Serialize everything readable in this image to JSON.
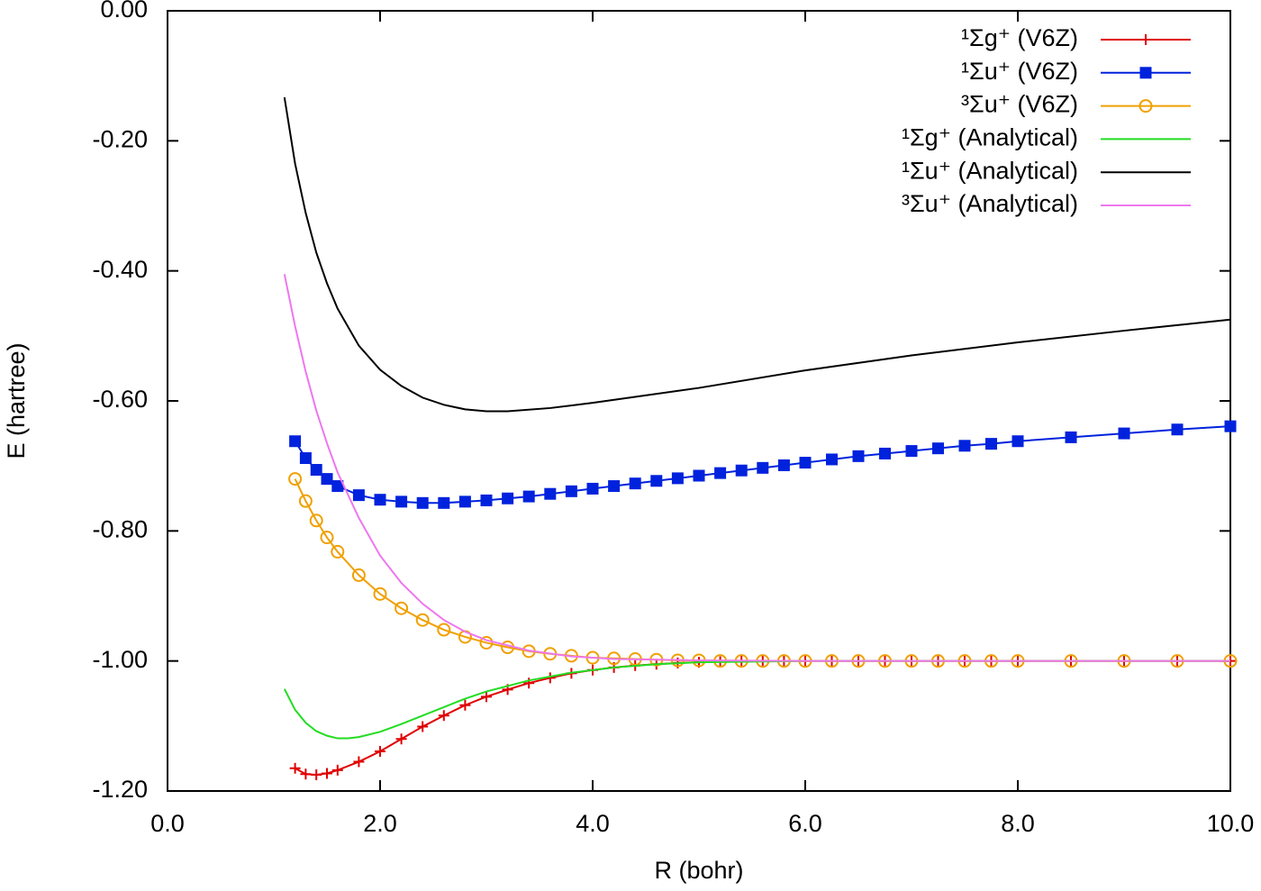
{
  "chart_data": {
    "type": "line",
    "x_label": "R (bohr)",
    "y_label": "E (hartree)",
    "xlim": [
      0,
      10
    ],
    "ylim": [
      -1.2,
      0
    ],
    "xticks": [
      {
        "value": 0,
        "label": "0.0"
      },
      {
        "value": 2,
        "label": "2.0"
      },
      {
        "value": 4,
        "label": "4.0"
      },
      {
        "value": 6,
        "label": "6.0"
      },
      {
        "value": 8,
        "label": "8.0"
      },
      {
        "value": 10,
        "label": "10.0"
      }
    ],
    "yticks": [
      {
        "value": 0,
        "label": "0.00"
      },
      {
        "value": -0.2,
        "label": "-0.20"
      },
      {
        "value": -0.4,
        "label": "-0.40"
      },
      {
        "value": -0.6,
        "label": "-0.60"
      },
      {
        "value": -0.8,
        "label": "-0.80"
      },
      {
        "value": -1.0,
        "label": "-1.00"
      },
      {
        "value": -1.2,
        "label": "-1.20"
      }
    ],
    "grid": false,
    "legend": "top-right",
    "series": [
      {
        "name": "¹Σg⁺ (V6Z)",
        "color": "#e00000",
        "marker": "plus",
        "x": [
          1.2,
          1.3,
          1.4,
          1.5,
          1.6,
          1.8,
          2.0,
          2.2,
          2.4,
          2.6,
          2.8,
          3.0,
          3.2,
          3.4,
          3.6,
          3.8,
          4.0,
          4.2,
          4.4,
          4.6,
          4.8,
          5.0,
          5.2,
          5.4,
          5.6,
          5.8,
          6.0,
          6.25,
          6.5,
          6.75,
          7.0,
          7.25,
          7.5,
          7.75,
          8.0,
          8.5,
          9.0,
          9.5,
          10.0
        ],
        "values": [
          -1.165,
          -1.174,
          -1.175,
          -1.173,
          -1.168,
          -1.155,
          -1.139,
          -1.12,
          -1.101,
          -1.084,
          -1.068,
          -1.055,
          -1.044,
          -1.034,
          -1.026,
          -1.019,
          -1.014,
          -1.01,
          -1.007,
          -1.005,
          -1.003,
          -1.002,
          -1.001,
          -1.0,
          -1.0,
          -1.0,
          -1.0,
          -1.0,
          -1.0,
          -1.0,
          -1.0,
          -1.0,
          -1.0,
          -1.0,
          -1.0,
          -1.0,
          -1.0,
          -1.0,
          -1.0
        ]
      },
      {
        "name": "¹Σu⁺ (V6Z)",
        "color": "#0022dd",
        "marker": "square",
        "x": [
          1.2,
          1.3,
          1.4,
          1.5,
          1.6,
          1.8,
          2.0,
          2.2,
          2.4,
          2.6,
          2.8,
          3.0,
          3.2,
          3.4,
          3.6,
          3.8,
          4.0,
          4.2,
          4.4,
          4.6,
          4.8,
          5.0,
          5.2,
          5.4,
          5.6,
          5.8,
          6.0,
          6.25,
          6.5,
          6.75,
          7.0,
          7.25,
          7.5,
          7.75,
          8.0,
          8.5,
          9.0,
          9.5,
          10.0
        ],
        "values": [
          -0.662,
          -0.688,
          -0.706,
          -0.72,
          -0.731,
          -0.745,
          -0.752,
          -0.755,
          -0.757,
          -0.757,
          -0.755,
          -0.753,
          -0.75,
          -0.747,
          -0.743,
          -0.739,
          -0.735,
          -0.731,
          -0.727,
          -0.723,
          -0.719,
          -0.715,
          -0.711,
          -0.707,
          -0.703,
          -0.699,
          -0.695,
          -0.69,
          -0.685,
          -0.681,
          -0.677,
          -0.673,
          -0.669,
          -0.666,
          -0.662,
          -0.656,
          -0.65,
          -0.644,
          -0.639
        ]
      },
      {
        "name": "³Σu⁺ (V6Z)",
        "color": "#f0a000",
        "marker": "circle",
        "x": [
          1.2,
          1.3,
          1.4,
          1.5,
          1.6,
          1.8,
          2.0,
          2.2,
          2.4,
          2.6,
          2.8,
          3.0,
          3.2,
          3.4,
          3.6,
          3.8,
          4.0,
          4.2,
          4.4,
          4.6,
          4.8,
          5.0,
          5.2,
          5.4,
          5.6,
          5.8,
          6.0,
          6.25,
          6.5,
          6.75,
          7.0,
          7.25,
          7.5,
          7.75,
          8.0,
          8.5,
          9.0,
          9.5,
          10.0
        ],
        "values": [
          -0.72,
          -0.754,
          -0.784,
          -0.81,
          -0.832,
          -0.868,
          -0.897,
          -0.919,
          -0.937,
          -0.952,
          -0.963,
          -0.972,
          -0.979,
          -0.985,
          -0.989,
          -0.992,
          -0.995,
          -0.996,
          -0.997,
          -0.998,
          -0.999,
          -0.999,
          -1.0,
          -1.0,
          -1.0,
          -1.0,
          -1.0,
          -1.0,
          -1.0,
          -1.0,
          -1.0,
          -1.0,
          -1.0,
          -1.0,
          -1.0,
          -1.0,
          -1.0,
          -1.0,
          -1.0
        ]
      },
      {
        "name": "¹Σg⁺ (Analytical)",
        "color": "#22dd22",
        "marker": "none",
        "x": [
          1.1,
          1.2,
          1.3,
          1.4,
          1.5,
          1.6,
          1.7,
          1.8,
          2.0,
          2.2,
          2.4,
          2.6,
          2.8,
          3.0,
          3.4,
          3.8,
          4.2,
          4.6,
          5.0,
          6.0,
          8.0,
          10.0
        ],
        "values": [
          -1.043,
          -1.075,
          -1.095,
          -1.108,
          -1.115,
          -1.119,
          -1.119,
          -1.117,
          -1.109,
          -1.097,
          -1.084,
          -1.071,
          -1.058,
          -1.047,
          -1.03,
          -1.018,
          -1.01,
          -1.005,
          -1.002,
          -1.0,
          -1.0,
          -1.0
        ]
      },
      {
        "name": "¹Σu⁺ (Analytical)",
        "color": "#000000",
        "marker": "none",
        "x": [
          1.1,
          1.2,
          1.3,
          1.4,
          1.5,
          1.6,
          1.8,
          2.0,
          2.2,
          2.4,
          2.6,
          2.8,
          3.0,
          3.2,
          3.6,
          4.0,
          5.0,
          6.0,
          7.0,
          8.0,
          9.0,
          10.0
        ],
        "values": [
          -0.133,
          -0.235,
          -0.311,
          -0.372,
          -0.419,
          -0.458,
          -0.515,
          -0.552,
          -0.577,
          -0.595,
          -0.606,
          -0.613,
          -0.616,
          -0.616,
          -0.611,
          -0.603,
          -0.58,
          -0.553,
          -0.53,
          -0.51,
          -0.492,
          -0.475
        ]
      },
      {
        "name": "³Σu⁺ (Analytical)",
        "color": "#ee77ee",
        "marker": "none",
        "x": [
          1.1,
          1.2,
          1.3,
          1.4,
          1.5,
          1.6,
          1.8,
          2.0,
          2.2,
          2.4,
          2.6,
          2.8,
          3.0,
          3.4,
          3.8,
          4.2,
          5.0,
          6.0,
          10.0
        ],
        "values": [
          -0.405,
          -0.485,
          -0.555,
          -0.615,
          -0.665,
          -0.71,
          -0.78,
          -0.838,
          -0.88,
          -0.912,
          -0.937,
          -0.955,
          -0.968,
          -0.984,
          -0.993,
          -0.997,
          -0.999,
          -1.0,
          -1.0
        ]
      }
    ]
  }
}
